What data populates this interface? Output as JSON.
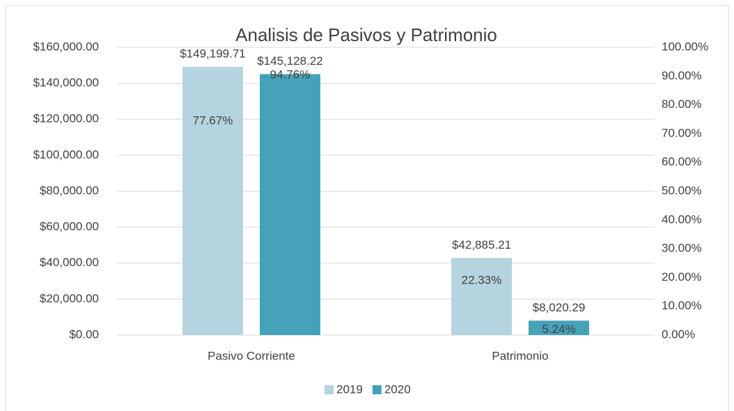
{
  "chart_data": {
    "type": "bar",
    "title": "Analisis de Pasivos y Patrimonio",
    "categories": [
      "Pasivo Corriente",
      "Patrimonio"
    ],
    "series": [
      {
        "name": "2019",
        "color": "#b4d4e0",
        "values": [
          149199.71,
          42885.21
        ],
        "value_labels": [
          "$149,199.71",
          "$42,885.21"
        ],
        "shares": [
          77.67,
          22.33
        ],
        "share_labels": [
          "77.67%",
          "22.33%"
        ]
      },
      {
        "name": "2020",
        "color": "#46a2b9",
        "values": [
          145128.22,
          8020.29
        ],
        "value_labels": [
          "$145,128.22",
          "$8,020.29"
        ],
        "shares": [
          94.76,
          5.24
        ],
        "share_labels": [
          "94.76%",
          "5.24%"
        ]
      }
    ],
    "ylim": [
      0,
      160000
    ],
    "yticks": [
      {
        "value": 0,
        "label": "$0.00"
      },
      {
        "value": 20000,
        "label": "$20,000.00"
      },
      {
        "value": 40000,
        "label": "$40,000.00"
      },
      {
        "value": 60000,
        "label": "$60,000.00"
      },
      {
        "value": 80000,
        "label": "$80,000.00"
      },
      {
        "value": 100000,
        "label": "$100,000.00"
      },
      {
        "value": 120000,
        "label": "$120,000.00"
      },
      {
        "value": 140000,
        "label": "$140,000.00"
      },
      {
        "value": 160000,
        "label": "$160,000.00"
      }
    ],
    "y2lim": [
      0,
      100
    ],
    "y2ticks": [
      {
        "value": 0,
        "label": "0.00%"
      },
      {
        "value": 10,
        "label": "10.00%"
      },
      {
        "value": 20,
        "label": "20.00%"
      },
      {
        "value": 30,
        "label": "30.00%"
      },
      {
        "value": 40,
        "label": "40.00%"
      },
      {
        "value": 50,
        "label": "50.00%"
      },
      {
        "value": 60,
        "label": "60.00%"
      },
      {
        "value": 70,
        "label": "70.00%"
      },
      {
        "value": 80,
        "label": "80.00%"
      },
      {
        "value": 90,
        "label": "90.00%"
      },
      {
        "value": 100,
        "label": "100.00%"
      }
    ],
    "grid": true,
    "legend": "bottom"
  }
}
